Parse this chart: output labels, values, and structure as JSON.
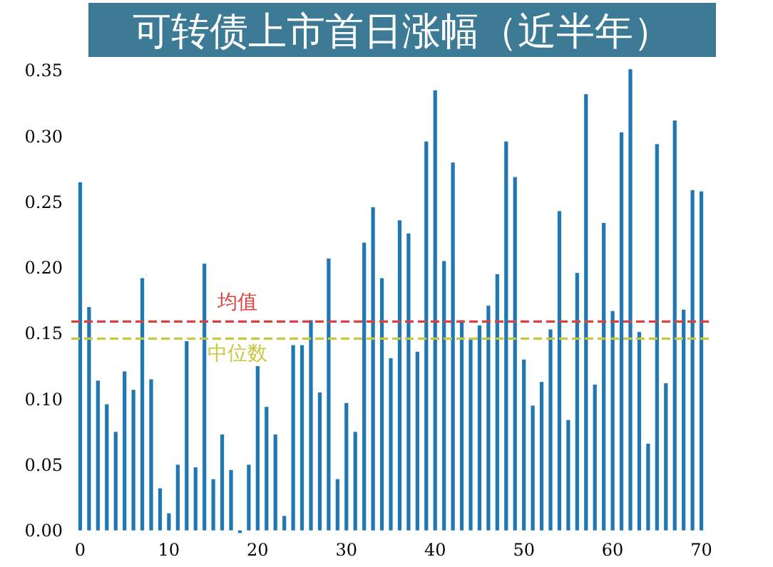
{
  "chart_data": {
    "type": "bar",
    "title": "可转债上市首日涨幅（近半年）",
    "color": "#1f77b4",
    "x": [
      0,
      1,
      2,
      3,
      4,
      5,
      6,
      7,
      8,
      9,
      10,
      11,
      12,
      13,
      14,
      15,
      16,
      17,
      18,
      19,
      20,
      21,
      22,
      23,
      24,
      25,
      26,
      27,
      28,
      29,
      30,
      31,
      32,
      33,
      34,
      35,
      36,
      37,
      38,
      39,
      40,
      41,
      42,
      43,
      44,
      45,
      46,
      47,
      48,
      49,
      50,
      51,
      52,
      53,
      54,
      55,
      56,
      57,
      58,
      59,
      60,
      61,
      62,
      63,
      64,
      65,
      66,
      67,
      68,
      69,
      70
    ],
    "values": [
      0.265,
      0.17,
      0.114,
      0.096,
      0.075,
      0.121,
      0.107,
      0.192,
      0.115,
      0.032,
      0.013,
      0.05,
      0.144,
      0.048,
      0.203,
      0.039,
      0.073,
      0.046,
      -0.002,
      0.05,
      0.125,
      0.094,
      0.073,
      0.011,
      0.141,
      0.141,
      0.16,
      0.105,
      0.207,
      0.039,
      0.097,
      0.075,
      0.219,
      0.246,
      0.192,
      0.131,
      0.236,
      0.226,
      0.136,
      0.296,
      0.335,
      0.205,
      0.28,
      0.16,
      0.146,
      0.156,
      0.171,
      0.195,
      0.296,
      0.269,
      0.13,
      0.095,
      0.113,
      0.153,
      0.243,
      0.084,
      0.196,
      0.332,
      0.111,
      0.234,
      0.167,
      0.303,
      0.351,
      0.151,
      0.066,
      0.294,
      0.112,
      0.312,
      0.168,
      0.259,
      0.258
    ],
    "xlim": [
      -1,
      71
    ],
    "xticks": [
      0,
      10,
      20,
      30,
      40,
      50,
      60,
      70
    ],
    "ylim": [
      -0.004,
      0.356
    ],
    "yticks": [
      {
        "value": 0,
        "label": "0.00"
      },
      {
        "value": 0.05,
        "label": "0.05"
      },
      {
        "value": 0.1,
        "label": "0.10"
      },
      {
        "value": 0.15,
        "label": "0.15"
      },
      {
        "value": 0.2,
        "label": "0.20"
      },
      {
        "value": 0.25,
        "label": "0.25"
      },
      {
        "value": 0.3,
        "label": "0.30"
      },
      {
        "value": 0.35,
        "label": "0.35"
      }
    ],
    "ref_lines": [
      {
        "axis": "y",
        "value": 0.159,
        "label": "均值",
        "color": "#e0403c",
        "line_style": "dashed"
      },
      {
        "axis": "y",
        "value": 0.146,
        "label": "中位数",
        "color": "#c8c840",
        "line_style": "dashed"
      }
    ],
    "grid": false
  }
}
